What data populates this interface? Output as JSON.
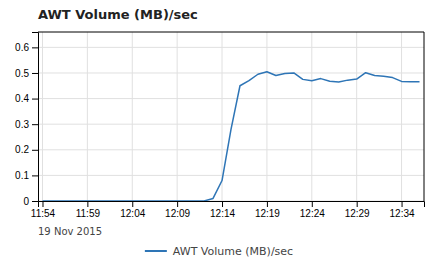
{
  "chart_data": {
    "type": "line",
    "title": "AWT Volume (MB)/sec",
    "x_label": "19 Nov 2015",
    "categories": [
      "11:54",
      null,
      null,
      null,
      null,
      "11:59",
      null,
      null,
      null,
      null,
      "12:04",
      null,
      null,
      null,
      null,
      "12:09",
      null,
      null,
      null,
      null,
      "12:14",
      null,
      null,
      null,
      null,
      "12:19",
      null,
      null,
      null,
      null,
      "12:24",
      null,
      null,
      null,
      null,
      "12:29",
      null,
      null,
      null,
      null,
      "12:34",
      null,
      null
    ],
    "series": [
      {
        "name": "AWT Volume (MB)/sec",
        "color": "#2e75b6",
        "values": [
          0,
          0,
          0,
          0,
          0,
          0,
          0,
          0,
          0,
          0,
          0,
          0,
          0,
          0,
          0,
          0,
          0,
          0,
          0,
          0.01,
          0.08,
          0.28,
          0.45,
          0.47,
          0.495,
          0.505,
          0.49,
          0.498,
          0.5,
          0.475,
          0.47,
          0.478,
          0.468,
          0.465,
          0.472,
          0.476,
          0.501,
          0.49,
          0.487,
          0.482,
          0.467,
          0.466,
          0.466
        ]
      }
    ],
    "ylim": [
      0,
      0.66
    ],
    "yticks": [
      0,
      0.1,
      0.2,
      0.3,
      0.4,
      0.5,
      0.6
    ],
    "grid": true,
    "legend": "bottom"
  }
}
